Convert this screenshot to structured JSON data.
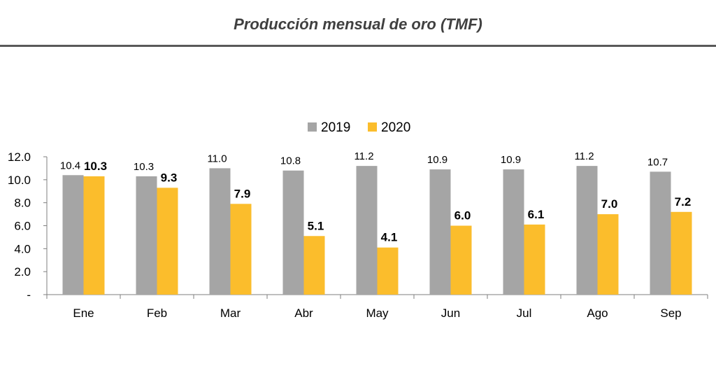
{
  "title": "Producción mensual de oro (TMF)",
  "chart_data": {
    "type": "bar",
    "title": "Producción mensual de oro (TMF)",
    "categories": [
      "Ene",
      "Feb",
      "Mar",
      "Abr",
      "May",
      "Jun",
      "Jul",
      "Ago",
      "Sep"
    ],
    "series": [
      {
        "name": "2019",
        "color": "#a5a5a5",
        "values": [
          10.4,
          10.3,
          11.0,
          10.8,
          11.2,
          10.9,
          10.9,
          11.2,
          10.7
        ],
        "labels": [
          "10.4",
          "10.3",
          "11.0",
          "10.8",
          "11.2",
          "10.9",
          "10.9",
          "11.2",
          "10.7"
        ]
      },
      {
        "name": "2020",
        "color": "#fbbd2c",
        "values": [
          10.3,
          9.3,
          7.9,
          5.1,
          4.1,
          6.0,
          6.1,
          7.0,
          7.2
        ],
        "labels": [
          "10.3",
          "9.3",
          "7.9",
          "5.1",
          "4.1",
          "6.0",
          "6.1",
          "7.0",
          "7.2"
        ]
      }
    ],
    "ylim": [
      0,
      12
    ],
    "yticks": [
      0,
      2,
      4,
      6,
      8,
      10,
      12
    ],
    "ytick_labels": [
      "-",
      "2.0",
      "4.0",
      "6.0",
      "8.0",
      "10.0",
      "12.0"
    ],
    "xlabel": "",
    "ylabel": "",
    "legend_position": "top",
    "grid": false
  }
}
